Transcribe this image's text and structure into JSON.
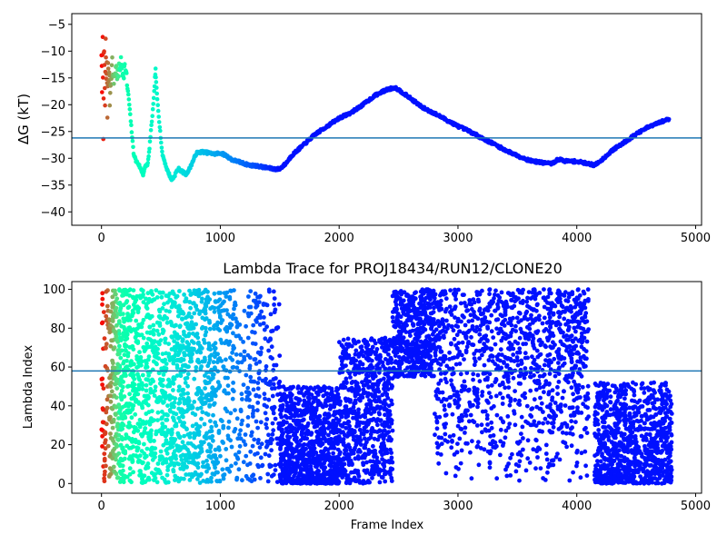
{
  "chart_data": [
    {
      "type": "scatter",
      "title": "",
      "xlabel": "",
      "ylabel": "ΔG (kT)",
      "xlim": [
        -250,
        5050
      ],
      "ylim": [
        -42.5,
        -3.0
      ],
      "xticks": [
        0,
        1000,
        2000,
        3000,
        4000,
        5000
      ],
      "yticks": [
        -40,
        -35,
        -30,
        -25,
        -20,
        -15,
        -10,
        -5
      ],
      "hline": -26.2,
      "hline_color": "#1f77b4",
      "colormap": "rainbow",
      "series": [
        {
          "path": [
            [
              0,
              -10
            ],
            [
              5,
              -18
            ],
            [
              10,
              -6
            ],
            [
              15,
              -26
            ],
            [
              20,
              -9
            ],
            [
              25,
              -14
            ],
            [
              30,
              -20
            ],
            [
              35,
              -8
            ],
            [
              40,
              -16
            ],
            [
              45,
              -12
            ],
            [
              50,
              -22
            ],
            [
              55,
              -11
            ],
            [
              60,
              -17
            ],
            [
              65,
              -13
            ],
            [
              70,
              -19
            ],
            [
              80,
              -15
            ],
            [
              90,
              -12
            ],
            [
              100,
              -16
            ],
            [
              120,
              -13
            ],
            [
              140,
              -15
            ],
            [
              160,
              -12
            ],
            [
              180,
              -14
            ],
            [
              200,
              -13
            ],
            [
              215,
              -16
            ],
            [
              230,
              -19
            ],
            [
              250,
              -24
            ],
            [
              270,
              -29
            ],
            [
              290,
              -30.5
            ],
            [
              310,
              -31
            ],
            [
              330,
              -32
            ],
            [
              350,
              -33
            ],
            [
              370,
              -31.5
            ],
            [
              390,
              -31
            ],
            [
              400,
              -29
            ],
            [
              420,
              -24
            ],
            [
              440,
              -19
            ],
            [
              450,
              -15
            ],
            [
              455,
              -13.5
            ],
            [
              460,
              -16
            ],
            [
              470,
              -19
            ],
            [
              490,
              -24
            ],
            [
              510,
              -29
            ],
            [
              530,
              -30.5
            ],
            [
              550,
              -32
            ],
            [
              570,
              -33
            ],
            [
              590,
              -34
            ],
            [
              610,
              -33.5
            ],
            [
              630,
              -32.5
            ],
            [
              650,
              -32
            ],
            [
              680,
              -32.5
            ],
            [
              710,
              -33
            ],
            [
              740,
              -32
            ],
            [
              770,
              -30.5
            ],
            [
              800,
              -29
            ],
            [
              850,
              -28.8
            ],
            [
              900,
              -29
            ],
            [
              950,
              -29.2
            ],
            [
              1000,
              -29
            ],
            [
              1050,
              -29.5
            ],
            [
              1100,
              -30.3
            ],
            [
              1150,
              -30.6
            ],
            [
              1200,
              -31
            ],
            [
              1250,
              -31.3
            ],
            [
              1300,
              -31.4
            ],
            [
              1350,
              -31.6
            ],
            [
              1400,
              -31.8
            ],
            [
              1450,
              -32
            ],
            [
              1500,
              -32
            ],
            [
              1550,
              -31
            ],
            [
              1600,
              -29.5
            ],
            [
              1650,
              -28.5
            ],
            [
              1700,
              -27.5
            ],
            [
              1750,
              -26.5
            ],
            [
              1800,
              -25.5
            ],
            [
              1900,
              -24
            ],
            [
              2000,
              -22.5
            ],
            [
              2100,
              -21.5
            ],
            [
              2200,
              -20
            ],
            [
              2300,
              -18.3
            ],
            [
              2400,
              -17.2
            ],
            [
              2470,
              -16.8
            ],
            [
              2500,
              -17.2
            ],
            [
              2600,
              -18.8
            ],
            [
              2700,
              -20.5
            ],
            [
              2800,
              -21.6
            ],
            [
              2900,
              -22.8
            ],
            [
              3000,
              -24
            ],
            [
              3100,
              -25
            ],
            [
              3200,
              -26.2
            ],
            [
              3300,
              -27.3
            ],
            [
              3400,
              -28.5
            ],
            [
              3500,
              -29.5
            ],
            [
              3600,
              -30.4
            ],
            [
              3700,
              -30.8
            ],
            [
              3800,
              -31
            ],
            [
              3820,
              -30.5
            ],
            [
              3850,
              -30.2
            ],
            [
              3900,
              -30.5
            ],
            [
              4000,
              -30.6
            ],
            [
              4100,
              -31
            ],
            [
              4150,
              -31.3
            ],
            [
              4200,
              -30.5
            ],
            [
              4300,
              -28.5
            ],
            [
              4400,
              -27
            ],
            [
              4500,
              -25.5
            ],
            [
              4600,
              -24.2
            ],
            [
              4700,
              -23.3
            ],
            [
              4780,
              -22.6
            ]
          ]
        }
      ]
    },
    {
      "type": "scatter",
      "title": "Lambda Trace for PROJ18434/RUN12/CLONE20",
      "xlabel": "Frame Index",
      "ylabel": "Lambda Index",
      "xlim": [
        -250,
        5050
      ],
      "ylim": [
        -5,
        104
      ],
      "xticks": [
        0,
        1000,
        2000,
        3000,
        4000,
        5000
      ],
      "yticks": [
        0,
        20,
        40,
        60,
        80,
        100
      ],
      "hline": 58,
      "hline_color": "#1f77b4",
      "colormap": "rainbow",
      "series": [
        {
          "density_bands": [
            [
              0,
              60,
              0,
              100,
              60
            ],
            [
              60,
              200,
              0,
              100,
              250
            ],
            [
              200,
              400,
              0,
              100,
              300
            ],
            [
              400,
              700,
              0,
              100,
              450
            ],
            [
              700,
              1000,
              0,
              100,
              400
            ],
            [
              1000,
              1500,
              0,
              100,
              350
            ],
            [
              1500,
              2000,
              0,
              50,
              900
            ],
            [
              2000,
              2450,
              0,
              75,
              700
            ],
            [
              2450,
              2800,
              55,
              100,
              500
            ],
            [
              2800,
              4100,
              0,
              100,
              1200
            ],
            [
              4150,
              4800,
              0,
              52,
              900
            ]
          ]
        }
      ]
    }
  ]
}
